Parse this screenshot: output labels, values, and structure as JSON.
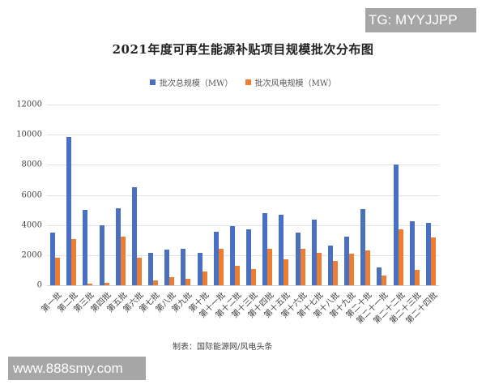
{
  "chart_data": {
    "type": "bar",
    "title": "2021年度可再生能源补贴项目规模批次分布图",
    "xlabel": "",
    "ylabel": "",
    "ylim": [
      0,
      12000
    ],
    "yticks": [
      0,
      2000,
      4000,
      6000,
      8000,
      10000,
      12000
    ],
    "grid": true,
    "legend_position": "top",
    "categories": [
      "第一批",
      "第二批",
      "第三批",
      "第四批",
      "第五批",
      "第六批",
      "第七批",
      "第八批",
      "第九批",
      "第十批",
      "第十一批",
      "第十二批",
      "第十三批",
      "第十四批",
      "第十五批",
      "第十六批",
      "第十七批",
      "第十八批",
      "第十九批",
      "第二十批",
      "第二十一批",
      "第二十二批",
      "第二十三批",
      "第二十四批"
    ],
    "series": [
      {
        "name": "批次总规模（MW）",
        "color": "#4a70c2",
        "values": [
          3500,
          9850,
          5000,
          4000,
          5100,
          6500,
          2150,
          2350,
          2400,
          2150,
          3550,
          3920,
          3700,
          4780,
          4680,
          3500,
          4350,
          2650,
          3250,
          5050,
          1200,
          8000,
          4250,
          4150
        ]
      },
      {
        "name": "批次风电规模（MW）",
        "color": "#ed7d31",
        "values": [
          1850,
          3050,
          100,
          150,
          3250,
          1850,
          300,
          550,
          420,
          920,
          2420,
          1300,
          1100,
          2420,
          1720,
          2420,
          2150,
          1620,
          2100,
          2300,
          650,
          3700,
          1050,
          3150
        ]
      }
    ],
    "source": "制表：国际能源网/风电头条"
  },
  "watermarks": {
    "top_right": "TG: MYYJJPP",
    "bottom_left": "www.888smy.com"
  }
}
